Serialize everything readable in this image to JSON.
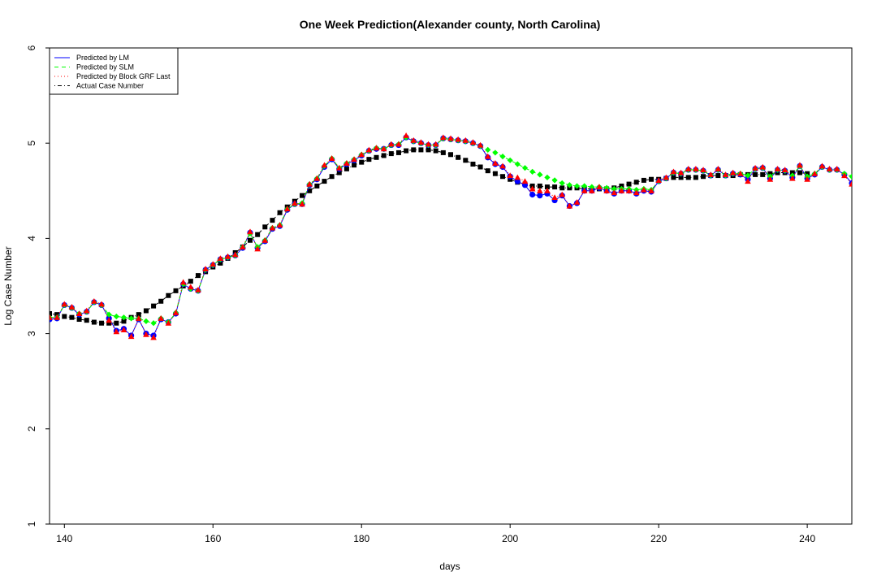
{
  "chart_data": {
    "type": "line",
    "title": "One Week Prediction(Alexander county, North Carolina)",
    "xlabel": "days",
    "ylabel": "Log Case Number",
    "xlim": [
      138,
      246
    ],
    "ylim": [
      1,
      6
    ],
    "xticks": [
      140,
      160,
      180,
      200,
      220,
      240
    ],
    "yticks": [
      1,
      2,
      3,
      4,
      5,
      6
    ],
    "grid": false,
    "legend_position": "top-left",
    "x": [
      138,
      139,
      140,
      141,
      142,
      143,
      144,
      145,
      146,
      147,
      148,
      149,
      150,
      151,
      152,
      153,
      154,
      155,
      156,
      157,
      158,
      159,
      160,
      161,
      162,
      163,
      164,
      165,
      166,
      167,
      168,
      169,
      170,
      171,
      172,
      173,
      174,
      175,
      176,
      177,
      178,
      179,
      180,
      181,
      182,
      183,
      184,
      185,
      186,
      187,
      188,
      189,
      190,
      191,
      192,
      193,
      194,
      195,
      196,
      197,
      198,
      199,
      200,
      201,
      202,
      203,
      204,
      205,
      206,
      207,
      208,
      209,
      210,
      211,
      212,
      213,
      214,
      215,
      216,
      217,
      218,
      219,
      220,
      221,
      222,
      223,
      224,
      225,
      226,
      227,
      228,
      229,
      230,
      231,
      232,
      233,
      234,
      235,
      236,
      237,
      238,
      239,
      240,
      241,
      242,
      243,
      244,
      245,
      246
    ],
    "series": [
      {
        "name": "Predicted by LM",
        "color": "#0000ff",
        "line_style": "solid",
        "marker": "circle",
        "values": [
          3.15,
          3.16,
          3.3,
          3.27,
          3.2,
          3.23,
          3.33,
          3.3,
          3.16,
          3.03,
          3.05,
          2.98,
          3.15,
          3.0,
          2.98,
          3.15,
          3.12,
          3.21,
          3.52,
          3.47,
          3.45,
          3.67,
          3.72,
          3.78,
          3.8,
          3.82,
          3.9,
          4.06,
          3.9,
          3.97,
          4.1,
          4.13,
          4.3,
          4.36,
          4.36,
          4.56,
          4.62,
          4.75,
          4.83,
          4.73,
          4.78,
          4.82,
          4.87,
          4.92,
          4.94,
          4.94,
          4.98,
          4.98,
          5.06,
          5.02,
          5.0,
          4.98,
          4.98,
          5.05,
          5.04,
          5.03,
          5.02,
          5.0,
          4.97,
          4.85,
          4.78,
          4.75,
          4.65,
          4.6,
          4.56,
          4.46,
          4.45,
          4.47,
          4.4,
          4.45,
          4.34,
          4.37,
          4.5,
          4.5,
          4.53,
          4.5,
          4.47,
          4.5,
          4.5,
          4.47,
          4.5,
          4.49,
          4.6,
          4.63,
          4.69,
          4.68,
          4.72,
          4.72,
          4.71,
          4.66,
          4.72,
          4.66,
          4.68,
          4.67,
          4.62,
          4.73,
          4.74,
          4.63,
          4.72,
          4.71,
          4.64,
          4.76,
          4.63,
          4.67,
          4.75,
          4.72,
          4.72,
          4.67,
          4.58
        ]
      },
      {
        "name": "Predicted by SLM",
        "color": "#00ff00",
        "line_style": "dashed",
        "marker": "diamond",
        "values": [
          3.17,
          3.17,
          3.3,
          3.27,
          3.21,
          3.23,
          3.33,
          3.3,
          3.2,
          3.18,
          3.17,
          3.16,
          3.16,
          3.13,
          3.11,
          3.16,
          3.12,
          3.22,
          3.52,
          3.47,
          3.45,
          3.67,
          3.72,
          3.78,
          3.8,
          3.82,
          3.91,
          4.05,
          3.91,
          3.98,
          4.11,
          4.14,
          4.31,
          4.36,
          4.37,
          4.57,
          4.63,
          4.76,
          4.84,
          4.74,
          4.79,
          4.83,
          4.88,
          4.92,
          4.95,
          4.94,
          4.98,
          4.99,
          5.06,
          5.02,
          5.0,
          4.98,
          4.98,
          5.05,
          5.04,
          5.03,
          5.02,
          5.0,
          4.97,
          4.93,
          4.9,
          4.86,
          4.82,
          4.78,
          4.74,
          4.7,
          4.67,
          4.64,
          4.61,
          4.58,
          4.56,
          4.55,
          4.55,
          4.54,
          4.54,
          4.53,
          4.52,
          4.52,
          4.52,
          4.51,
          4.52,
          4.51,
          4.6,
          4.63,
          4.69,
          4.68,
          4.72,
          4.72,
          4.71,
          4.66,
          4.72,
          4.66,
          4.68,
          4.68,
          4.66,
          4.73,
          4.74,
          4.65,
          4.72,
          4.71,
          4.66,
          4.76,
          4.65,
          4.68,
          4.75,
          4.72,
          4.72,
          4.68,
          4.65
        ]
      },
      {
        "name": "Predicted by Block GRF Last",
        "color": "#ff0000",
        "line_style": "dotted",
        "marker": "triangle",
        "values": [
          3.17,
          3.17,
          3.31,
          3.28,
          3.21,
          3.24,
          3.34,
          3.31,
          3.14,
          3.02,
          3.04,
          2.97,
          3.16,
          2.99,
          2.96,
          3.16,
          3.11,
          3.22,
          3.54,
          3.49,
          3.46,
          3.68,
          3.73,
          3.79,
          3.81,
          3.83,
          3.91,
          4.07,
          3.89,
          3.98,
          4.11,
          4.14,
          4.31,
          4.37,
          4.36,
          4.57,
          4.63,
          4.77,
          4.84,
          4.74,
          4.79,
          4.83,
          4.88,
          4.93,
          4.95,
          4.94,
          4.99,
          4.99,
          5.08,
          5.03,
          5.01,
          4.99,
          4.99,
          5.06,
          5.05,
          5.04,
          5.03,
          5.01,
          4.98,
          4.86,
          4.79,
          4.76,
          4.66,
          4.64,
          4.6,
          4.52,
          4.5,
          4.5,
          4.43,
          4.46,
          4.34,
          4.38,
          4.5,
          4.5,
          4.54,
          4.5,
          4.48,
          4.5,
          4.5,
          4.48,
          4.51,
          4.5,
          4.61,
          4.64,
          4.7,
          4.69,
          4.73,
          4.73,
          4.72,
          4.67,
          4.73,
          4.67,
          4.69,
          4.68,
          4.6,
          4.74,
          4.75,
          4.62,
          4.73,
          4.72,
          4.63,
          4.77,
          4.62,
          4.68,
          4.76,
          4.73,
          4.73,
          4.66,
          4.57
        ]
      },
      {
        "name": "Actual Case Number",
        "color": "#000000",
        "line_style": "dotdash",
        "marker": "square",
        "values": [
          3.21,
          3.2,
          3.18,
          3.17,
          3.15,
          3.14,
          3.12,
          3.11,
          3.11,
          3.11,
          3.13,
          3.17,
          3.2,
          3.24,
          3.29,
          3.34,
          3.4,
          3.45,
          3.5,
          3.55,
          3.61,
          3.65,
          3.7,
          3.74,
          3.79,
          3.85,
          3.91,
          3.98,
          4.04,
          4.12,
          4.19,
          4.27,
          4.33,
          4.39,
          4.45,
          4.5,
          4.55,
          4.6,
          4.65,
          4.69,
          4.73,
          4.77,
          4.8,
          4.83,
          4.85,
          4.87,
          4.89,
          4.9,
          4.92,
          4.93,
          4.93,
          4.93,
          4.92,
          4.9,
          4.88,
          4.85,
          4.82,
          4.78,
          4.75,
          4.71,
          4.68,
          4.65,
          4.62,
          4.59,
          4.57,
          4.55,
          4.55,
          4.54,
          4.54,
          4.53,
          4.53,
          4.53,
          4.52,
          4.52,
          4.52,
          4.52,
          4.53,
          4.55,
          4.57,
          4.59,
          4.61,
          4.62,
          4.62,
          4.63,
          4.64,
          4.64,
          4.64,
          4.64,
          4.65,
          4.66,
          4.66,
          4.66,
          4.66,
          4.67,
          4.67,
          4.67,
          4.67,
          4.68,
          4.69,
          4.69,
          4.69,
          4.69,
          4.68,
          null,
          null,
          null,
          null,
          null,
          null
        ]
      }
    ]
  }
}
